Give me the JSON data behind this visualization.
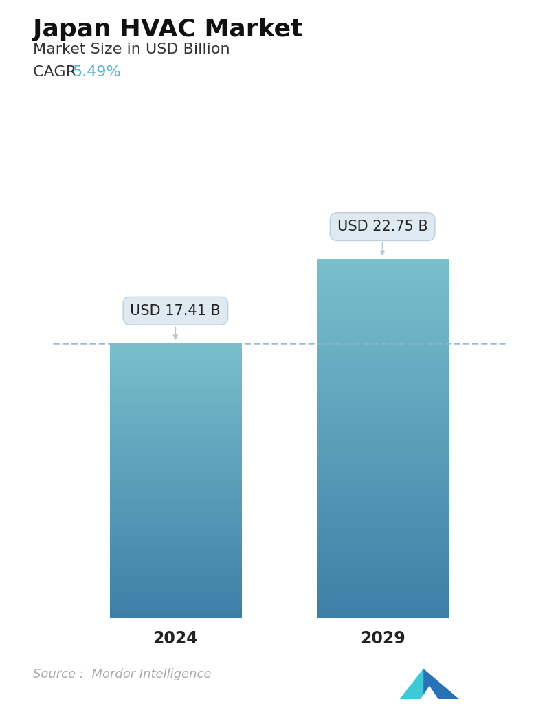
{
  "title": "Japan HVAC Market",
  "subtitle": "Market Size in USD Billion",
  "cagr_label": "CAGR ",
  "cagr_value": "5.49%",
  "cagr_color": "#5ab4d6",
  "categories": [
    "2024",
    "2029"
  ],
  "values": [
    17.41,
    22.75
  ],
  "bar_labels": [
    "USD 17.41 B",
    "USD 22.75 B"
  ],
  "bar_top_color": "#7abfcc",
  "bar_bottom_color": "#3e7fa8",
  "dashed_line_color": "#88b8cc",
  "dashed_line_value": 17.41,
  "source_text": "Source :  Mordor Intelligence",
  "source_color": "#aaaaaa",
  "background_color": "#ffffff",
  "title_fontsize": 26,
  "subtitle_fontsize": 16,
  "cagr_fontsize": 16,
  "xlabel_fontsize": 17,
  "annotation_fontsize": 15,
  "ylim": [
    0,
    27
  ],
  "bar_width": 0.28,
  "x_positions": [
    0.28,
    0.72
  ]
}
